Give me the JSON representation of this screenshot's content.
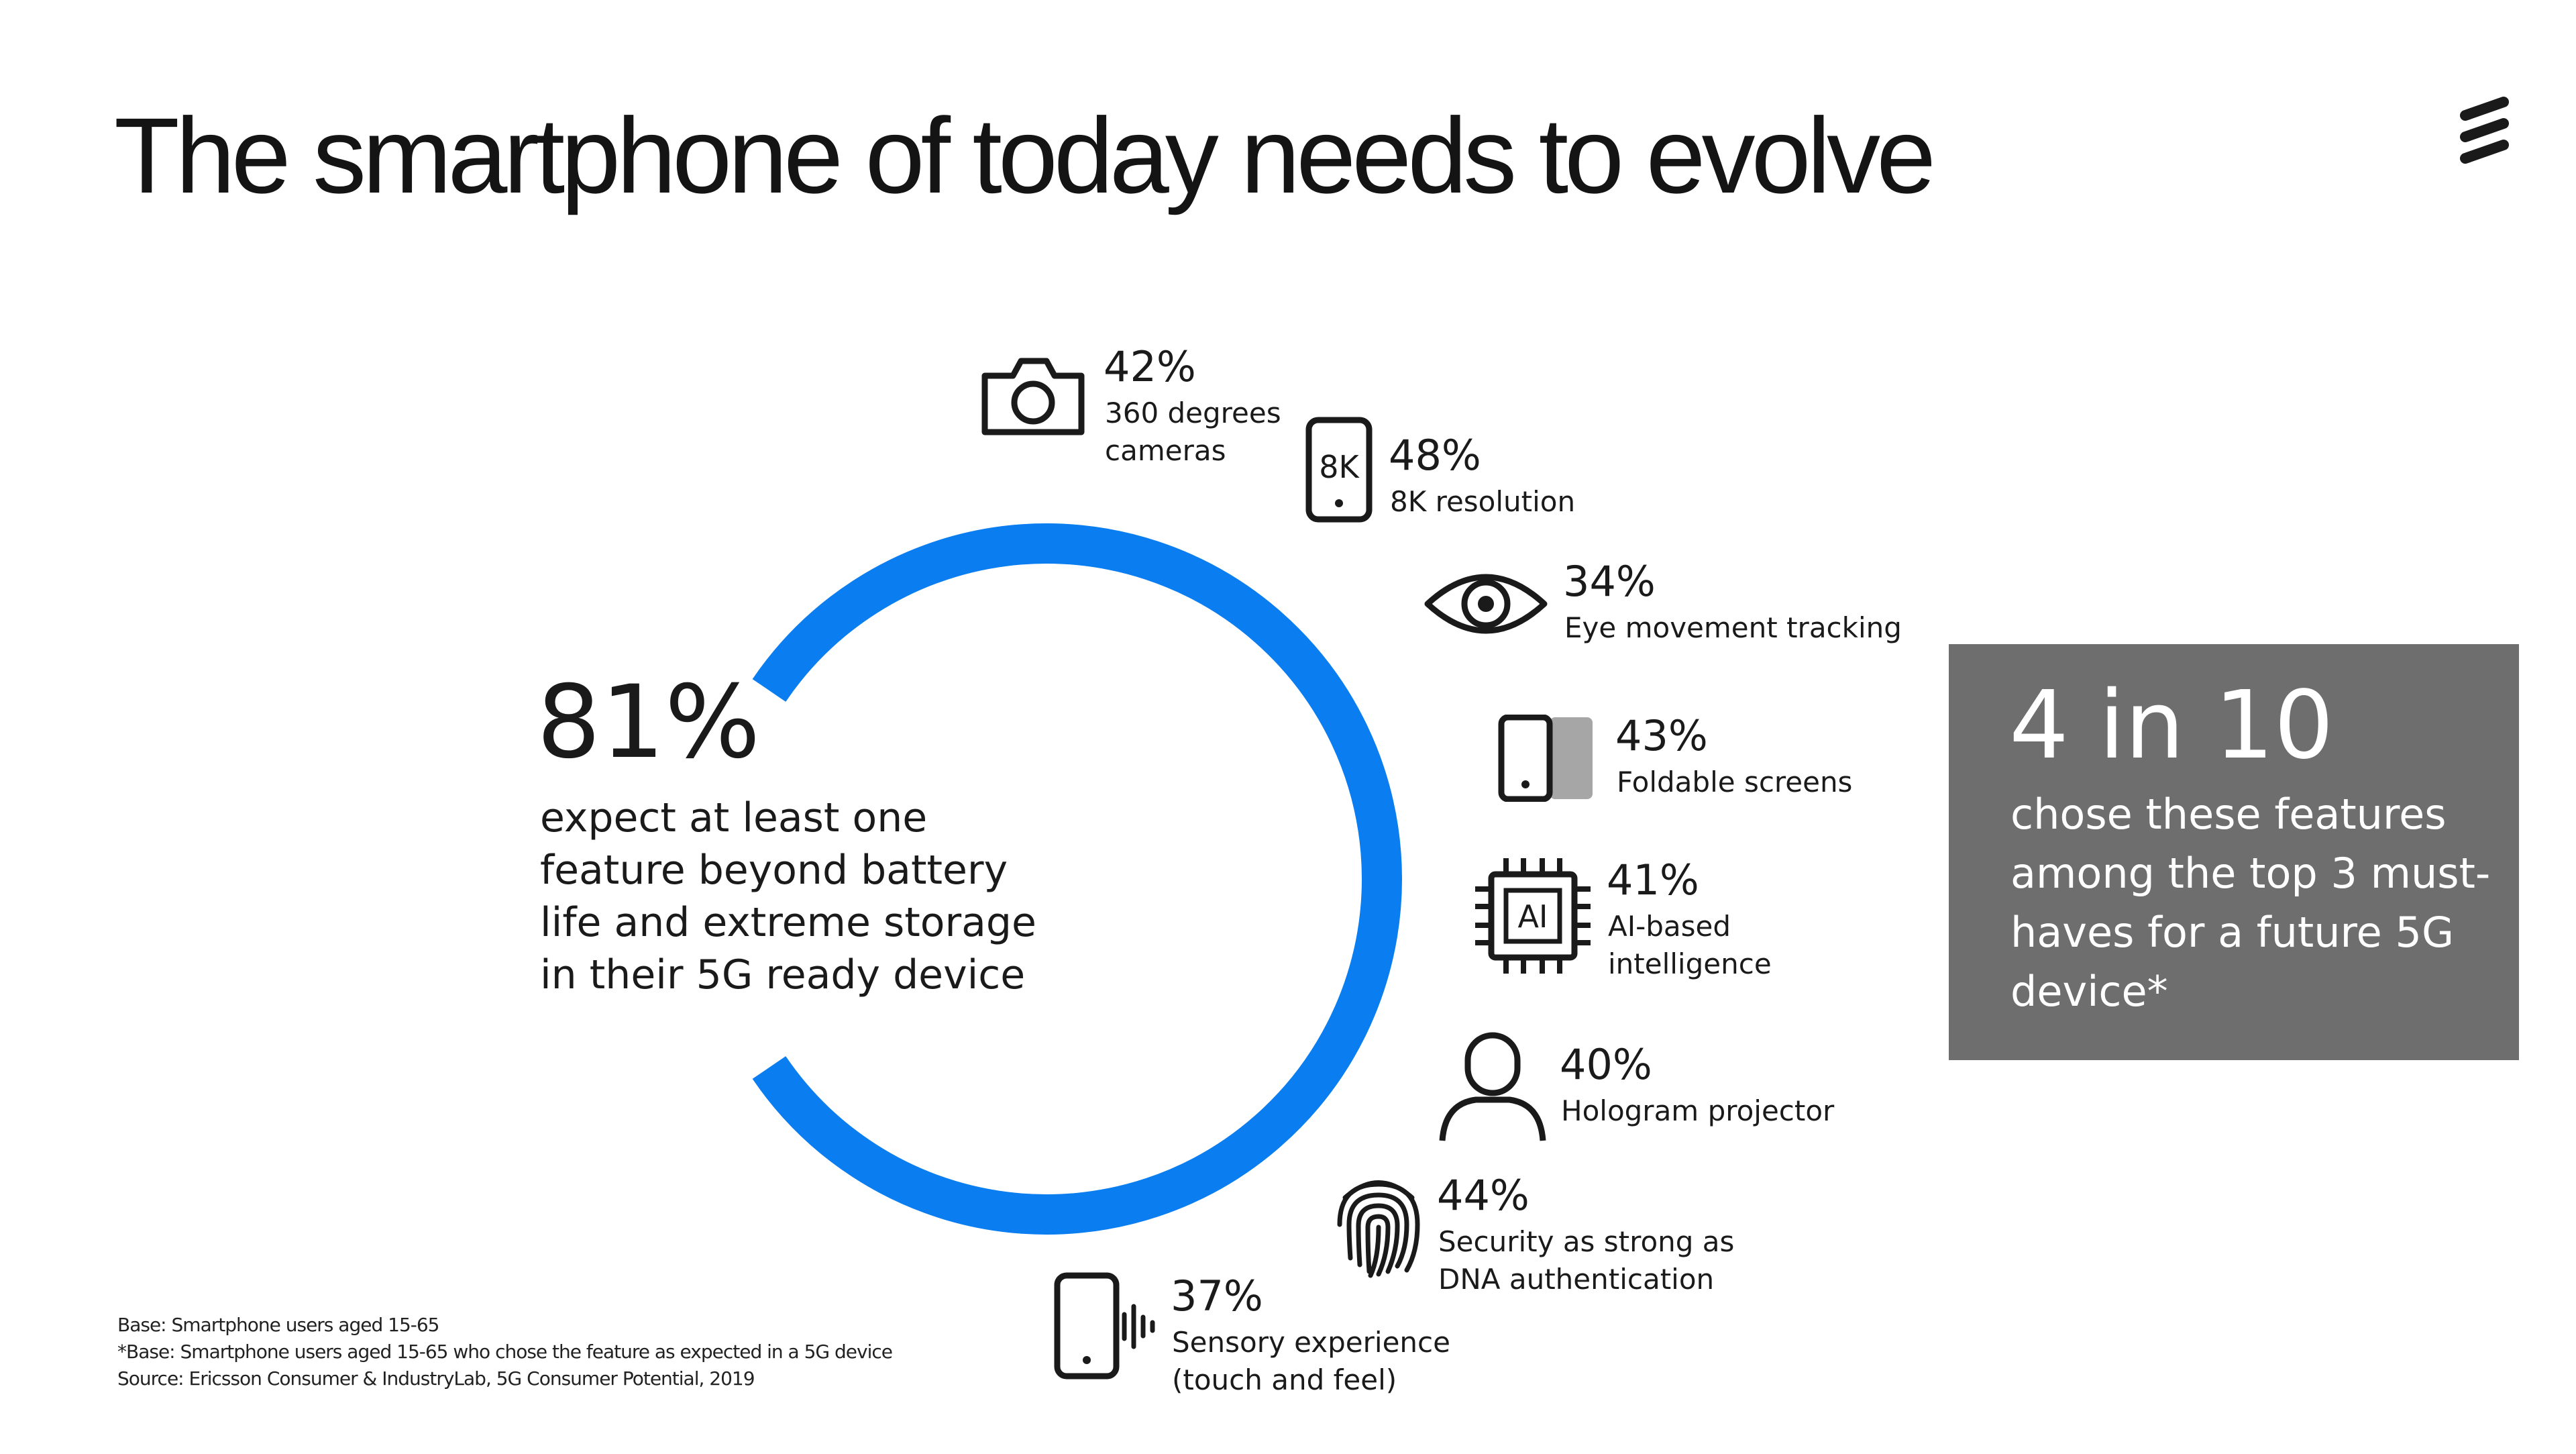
{
  "title": "The smartphone of today needs to evolve",
  "logo_icon": "ericsson-logo-icon",
  "colors": {
    "accent_blue": "#0a7ef0",
    "box_gray": "#6e6e6e",
    "text": "#1a1a1a"
  },
  "headline": {
    "percent": "81%",
    "description": "expect at least one feature beyond battery life and extreme storage in their 5G ready device"
  },
  "chart_data": {
    "type": "ring",
    "ring_fill_percent": 81,
    "categories": [
      "360 degrees cameras",
      "8K resolution",
      "Eye movement tracking",
      "Foldable screens",
      "AI-based intelligence",
      "Hologram projector",
      "Security as strong as DNA authentication",
      "Sensory experience (touch and feel)"
    ],
    "values": [
      42,
      48,
      34,
      43,
      41,
      40,
      44,
      37
    ]
  },
  "features": [
    {
      "icon": "camera-icon",
      "percent": "42%",
      "label_lines": [
        "360 degrees",
        "cameras"
      ]
    },
    {
      "icon": "phone-8k-icon",
      "percent": "48%",
      "label_lines": [
        "8K resolution"
      ]
    },
    {
      "icon": "eye-icon",
      "percent": "34%",
      "label_lines": [
        "Eye movement tracking"
      ]
    },
    {
      "icon": "foldable-screen-icon",
      "percent": "43%",
      "label_lines": [
        "Foldable screens"
      ]
    },
    {
      "icon": "ai-chip-icon",
      "percent": "41%",
      "label_lines": [
        "AI-based",
        "intelligence"
      ]
    },
    {
      "icon": "person-icon",
      "percent": "40%",
      "label_lines": [
        "Hologram projector"
      ]
    },
    {
      "icon": "fingerprint-icon",
      "percent": "44%",
      "label_lines": [
        "Security as strong as",
        "DNA authentication"
      ]
    },
    {
      "icon": "phone-vibration-icon",
      "percent": "37%",
      "label_lines": [
        "Sensory experience",
        "(touch and feel)"
      ]
    }
  ],
  "icon_text": {
    "phone_8k": "8K",
    "ai_chip": "AI"
  },
  "stat_box": {
    "headline": "4 in 10",
    "text": "chose these features among the top 3 must-haves for a future 5G device*"
  },
  "footnotes": [
    "Base: Smartphone users aged 15-65",
    "*Base: Smartphone users aged 15-65 who chose the feature as expected in a 5G device",
    "Source: Ericsson Consumer & IndustryLab, 5G Consumer Potential, 2019"
  ]
}
